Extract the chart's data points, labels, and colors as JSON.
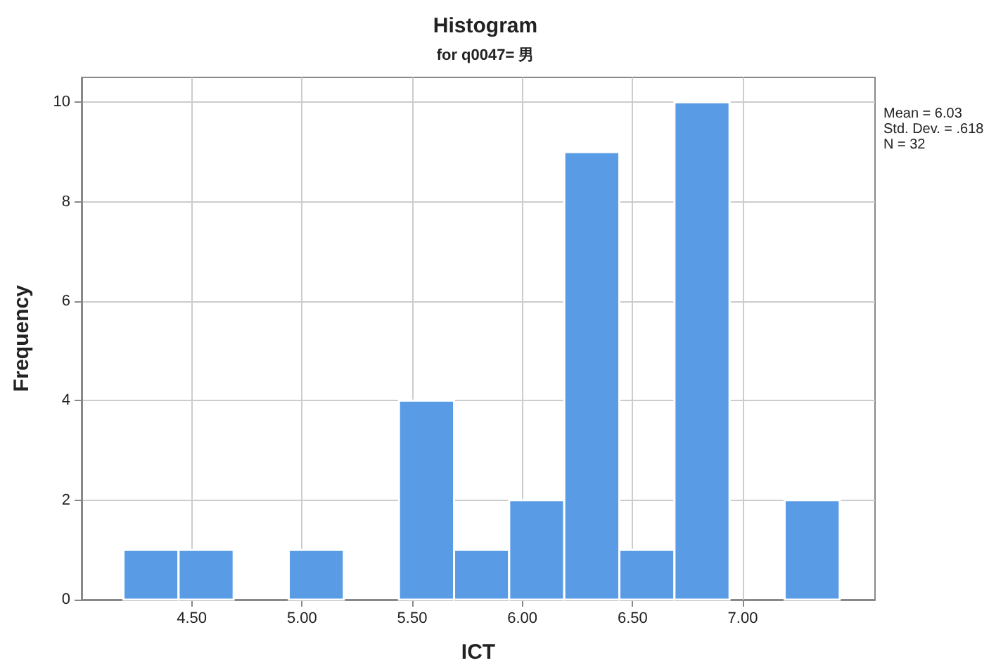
{
  "chart_data": {
    "type": "histogram",
    "title": "Histogram",
    "subtitle": "for q0047= 男",
    "xlabel": "ICT",
    "ylabel": "Frequency",
    "bins": [
      4.19,
      4.44,
      4.69,
      4.94,
      5.19,
      5.44,
      5.69,
      5.94,
      6.19,
      6.44,
      6.69,
      6.94,
      7.19,
      7.44
    ],
    "values": [
      1,
      1,
      0,
      1,
      0,
      4,
      1,
      2,
      9,
      1,
      10,
      0,
      2
    ],
    "color": "#5a9be6",
    "xlim": [
      4.0,
      7.6
    ],
    "xticks": [
      {
        "value": 4.5,
        "label": "4.50"
      },
      {
        "value": 5.0,
        "label": "5.00"
      },
      {
        "value": 5.5,
        "label": "5.50"
      },
      {
        "value": 6.0,
        "label": "6.00"
      },
      {
        "value": 6.5,
        "label": "6.50"
      },
      {
        "value": 7.0,
        "label": "7.00"
      }
    ],
    "ylim": [
      0,
      10.5
    ],
    "yticks": [
      0,
      2,
      4,
      6,
      8,
      10
    ],
    "grid": true,
    "annotations": [
      "Mean = 6.03",
      "Std. Dev. = .618",
      "N = 32"
    ]
  }
}
